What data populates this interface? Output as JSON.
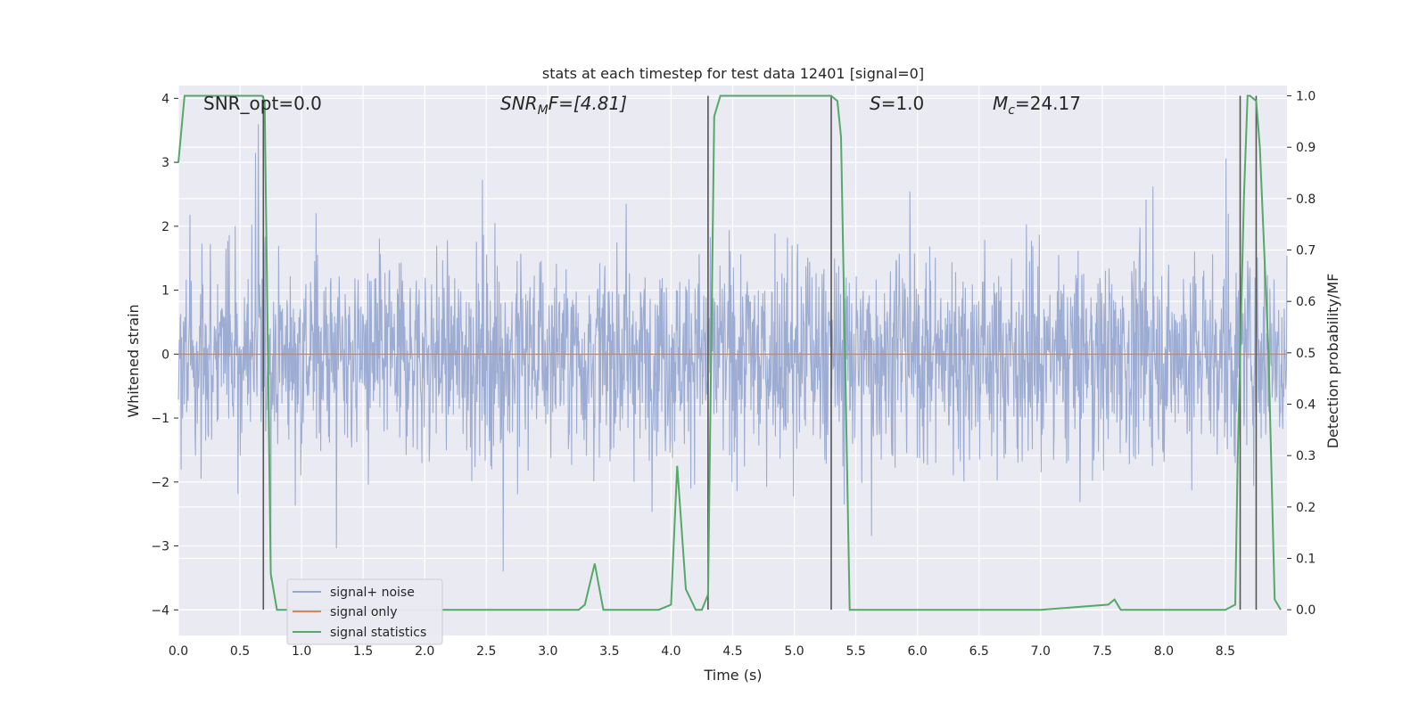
{
  "chart_data": {
    "type": "line",
    "title": "stats at each timestep for test data 12401 [signal=0]",
    "xlabel": "Time (s)",
    "ylabel": "Whitened strain",
    "y2label": "Detection probability/MF",
    "xlim": [
      0.0,
      9.0
    ],
    "ylim": [
      -4.4,
      4.2
    ],
    "y2lim": [
      -0.05,
      1.02
    ],
    "x_ticks": [
      "0.0",
      "0.5",
      "1.0",
      "1.5",
      "2.0",
      "2.5",
      "3.0",
      "3.5",
      "4.0",
      "4.5",
      "5.0",
      "5.5",
      "6.0",
      "6.5",
      "7.0",
      "7.5",
      "8.0",
      "8.5"
    ],
    "y_ticks": [
      "−4",
      "−3",
      "−2",
      "−1",
      "0",
      "1",
      "2",
      "3",
      "4"
    ],
    "y2_ticks": [
      "0.0",
      "0.1",
      "0.2",
      "0.3",
      "0.4",
      "0.5",
      "0.6",
      "0.7",
      "0.8",
      "0.9",
      "1.0"
    ],
    "grid": true,
    "legend_position": "lower-left",
    "annotations": {
      "snr_opt": "SNR_opt=0.0",
      "snr_mf_main": "SNR",
      "snr_mf_sub": "M",
      "snr_mf_rest": "F=[4.81]",
      "s_label": "S",
      "s_value": "=1.0",
      "mc_main": "M",
      "mc_sub": "c",
      "mc_value": "=24.17"
    },
    "series": [
      {
        "name": "signal+ noise",
        "color": "#98a9d0",
        "description_level": "noise band approx ±1.5 with peaks to ±3.8"
      },
      {
        "name": "signal only",
        "color": "#dd8452",
        "values": "constant 0"
      },
      {
        "name": "signal statistics",
        "color": "#55a868",
        "axis": "right",
        "x": [
          0.0,
          0.05,
          0.1,
          0.15,
          0.2,
          0.3,
          0.4,
          0.5,
          0.6,
          0.68,
          0.7,
          0.75,
          0.8,
          0.9,
          1.0,
          1.5,
          2.0,
          2.5,
          3.0,
          3.25,
          3.3,
          3.38,
          3.45,
          3.5,
          3.9,
          4.0,
          4.05,
          4.12,
          4.2,
          4.25,
          4.3,
          4.35,
          4.4,
          4.5,
          5.0,
          5.3,
          5.35,
          5.38,
          5.45,
          5.5,
          6.0,
          7.0,
          7.55,
          7.6,
          7.65,
          7.7,
          8.0,
          8.5,
          8.58,
          8.6,
          8.65,
          8.68,
          8.7,
          8.75,
          8.78,
          8.85,
          8.9,
          8.95
        ],
        "values": [
          0.87,
          1.0,
          1.0,
          1.0,
          1.0,
          1.0,
          1.0,
          1.0,
          1.0,
          1.0,
          0.99,
          0.07,
          0.0,
          0.0,
          0.0,
          0.0,
          0.0,
          0.0,
          0.0,
          0.0,
          0.01,
          0.09,
          0.0,
          0.0,
          0.0,
          0.01,
          0.28,
          0.04,
          0.0,
          0.0,
          0.03,
          0.96,
          1.0,
          1.0,
          1.0,
          1.0,
          0.99,
          0.92,
          0.0,
          0.0,
          0.0,
          0.0,
          0.01,
          0.02,
          0.0,
          0.0,
          0.0,
          0.0,
          0.01,
          0.3,
          0.8,
          1.0,
          1.0,
          0.99,
          0.9,
          0.5,
          0.02,
          0.0
        ]
      }
    ],
    "vertical_markers_x": [
      0.69,
      4.3,
      5.3,
      8.62,
      8.75
    ]
  }
}
